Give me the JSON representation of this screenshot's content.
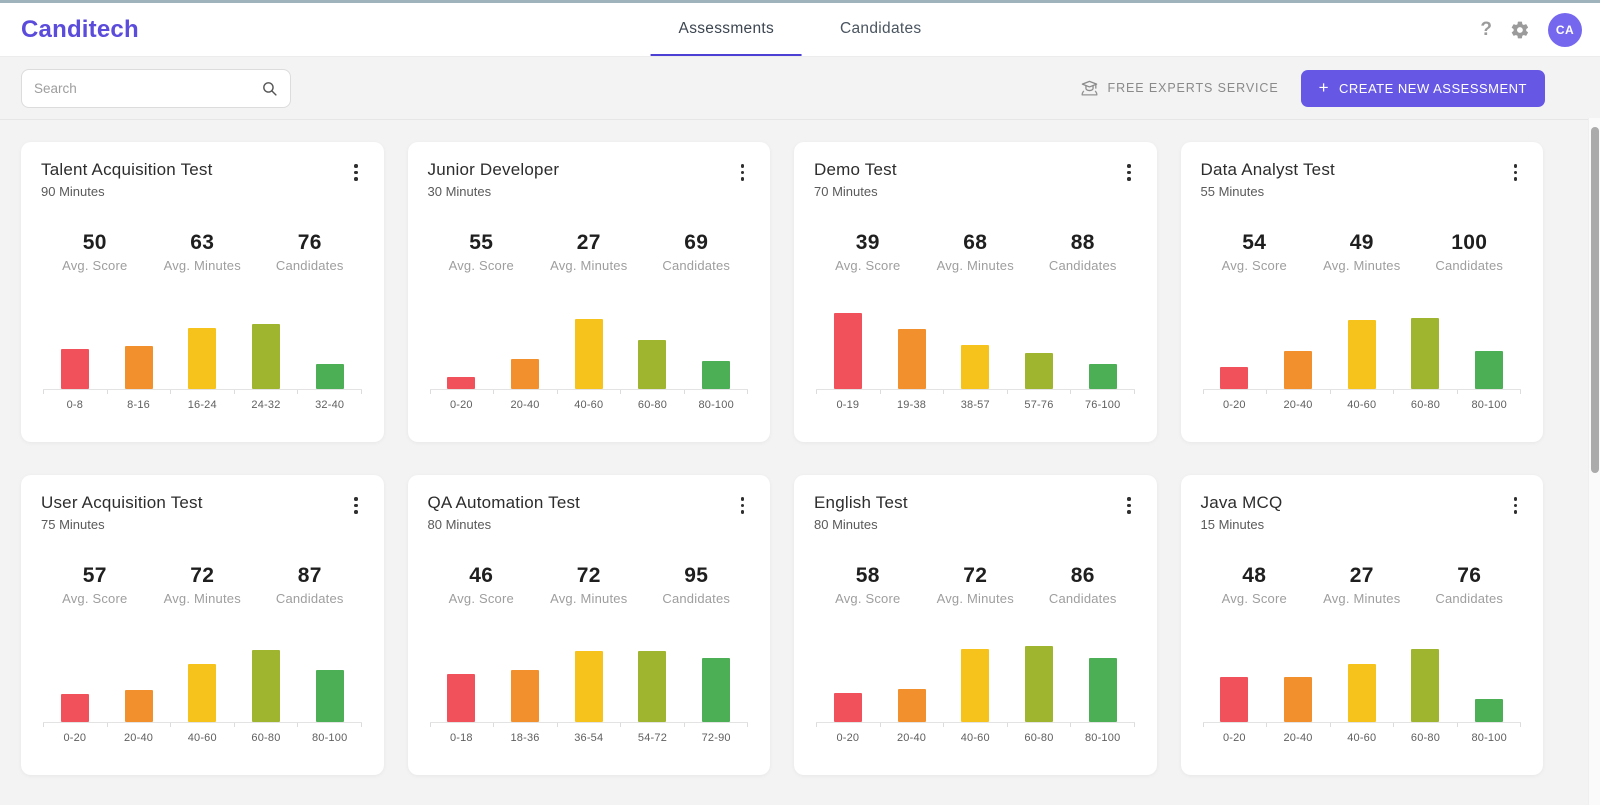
{
  "header": {
    "logo": "Canditech",
    "tabs": [
      {
        "label": "Assessments",
        "active": true
      },
      {
        "label": "Candidates",
        "active": false
      }
    ],
    "help_label": "?",
    "avatar_initials": "CA"
  },
  "toolbar": {
    "search_placeholder": "Search",
    "free_experts_label": "FREE EXPERTS SERVICE",
    "create_button_plus": "+",
    "create_button_label": "CREATE NEW ASSESSMENT"
  },
  "colors": {
    "accent": "#5b4cdb",
    "tab_underline": "#4b3fd4",
    "button_bg": "#6658e5",
    "avatar_bg": "#7668ee",
    "top_strip": "#9fb3bc",
    "bar_colors": [
      "#f1515a",
      "#f2902e",
      "#f6c31d",
      "#a0b52f",
      "#4caf55"
    ]
  },
  "cards": [
    {
      "title": "Talent Acquisition Test",
      "duration": "90 Minutes",
      "stats": [
        {
          "value": "50",
          "label": "Avg. Score"
        },
        {
          "value": "63",
          "label": "Avg. Minutes"
        },
        {
          "value": "76",
          "label": "Candidates"
        }
      ],
      "chart": {
        "type": "bar",
        "bins": [
          "0-8",
          "8-16",
          "16-24",
          "24-32",
          "32-40"
        ],
        "heights_pct": [
          50,
          54,
          76,
          81,
          31
        ]
      }
    },
    {
      "title": "Junior Developer",
      "duration": "30 Minutes",
      "stats": [
        {
          "value": "55",
          "label": "Avg. Score"
        },
        {
          "value": "27",
          "label": "Avg. Minutes"
        },
        {
          "value": "69",
          "label": "Candidates"
        }
      ],
      "chart": {
        "type": "bar",
        "bins": [
          "0-20",
          "20-40",
          "40-60",
          "60-80",
          "80-100"
        ],
        "heights_pct": [
          15,
          38,
          88,
          61,
          35
        ]
      }
    },
    {
      "title": "Demo Test",
      "duration": "70 Minutes",
      "stats": [
        {
          "value": "39",
          "label": "Avg. Score"
        },
        {
          "value": "68",
          "label": "Avg. Minutes"
        },
        {
          "value": "88",
          "label": "Candidates"
        }
      ],
      "chart": {
        "type": "bar",
        "bins": [
          "0-19",
          "19-38",
          "38-57",
          "57-76",
          "76-100"
        ],
        "heights_pct": [
          95,
          75,
          55,
          45,
          31
        ]
      }
    },
    {
      "title": "Data Analyst Test",
      "duration": "55 Minutes",
      "stats": [
        {
          "value": "54",
          "label": "Avg. Score"
        },
        {
          "value": "49",
          "label": "Avg. Minutes"
        },
        {
          "value": "100",
          "label": "Candidates"
        }
      ],
      "chart": {
        "type": "bar",
        "bins": [
          "0-20",
          "20-40",
          "40-60",
          "60-80",
          "80-100"
        ],
        "heights_pct": [
          28,
          48,
          86,
          89,
          48
        ]
      }
    },
    {
      "title": "User Acquisition Test",
      "duration": "75 Minutes",
      "stats": [
        {
          "value": "57",
          "label": "Avg. Score"
        },
        {
          "value": "72",
          "label": "Avg. Minutes"
        },
        {
          "value": "87",
          "label": "Candidates"
        }
      ],
      "chart": {
        "type": "bar",
        "bins": [
          "0-20",
          "20-40",
          "40-60",
          "60-80",
          "80-100"
        ],
        "heights_pct": [
          35,
          40,
          73,
          90,
          65
        ]
      }
    },
    {
      "title": "QA Automation Test",
      "duration": "80 Minutes",
      "stats": [
        {
          "value": "46",
          "label": "Avg. Score"
        },
        {
          "value": "72",
          "label": "Avg. Minutes"
        },
        {
          "value": "95",
          "label": "Candidates"
        }
      ],
      "chart": {
        "type": "bar",
        "bins": [
          "0-18",
          "18-36",
          "36-54",
          "54-72",
          "72-90"
        ],
        "heights_pct": [
          60,
          65,
          89,
          89,
          80
        ]
      }
    },
    {
      "title": "English Test",
      "duration": "80 Minutes",
      "stats": [
        {
          "value": "58",
          "label": "Avg. Score"
        },
        {
          "value": "72",
          "label": "Avg. Minutes"
        },
        {
          "value": "86",
          "label": "Candidates"
        }
      ],
      "chart": {
        "type": "bar",
        "bins": [
          "0-20",
          "20-40",
          "40-60",
          "60-80",
          "80-100"
        ],
        "heights_pct": [
          36,
          41,
          91,
          95,
          80
        ]
      }
    },
    {
      "title": "Java MCQ",
      "duration": "15 Minutes",
      "stats": [
        {
          "value": "48",
          "label": "Avg. Score"
        },
        {
          "value": "27",
          "label": "Avg. Minutes"
        },
        {
          "value": "76",
          "label": "Candidates"
        }
      ],
      "chart": {
        "type": "bar",
        "bins": [
          "0-20",
          "20-40",
          "40-60",
          "60-80",
          "80-100"
        ],
        "heights_pct": [
          56,
          56,
          73,
          91,
          29
        ]
      }
    }
  ]
}
